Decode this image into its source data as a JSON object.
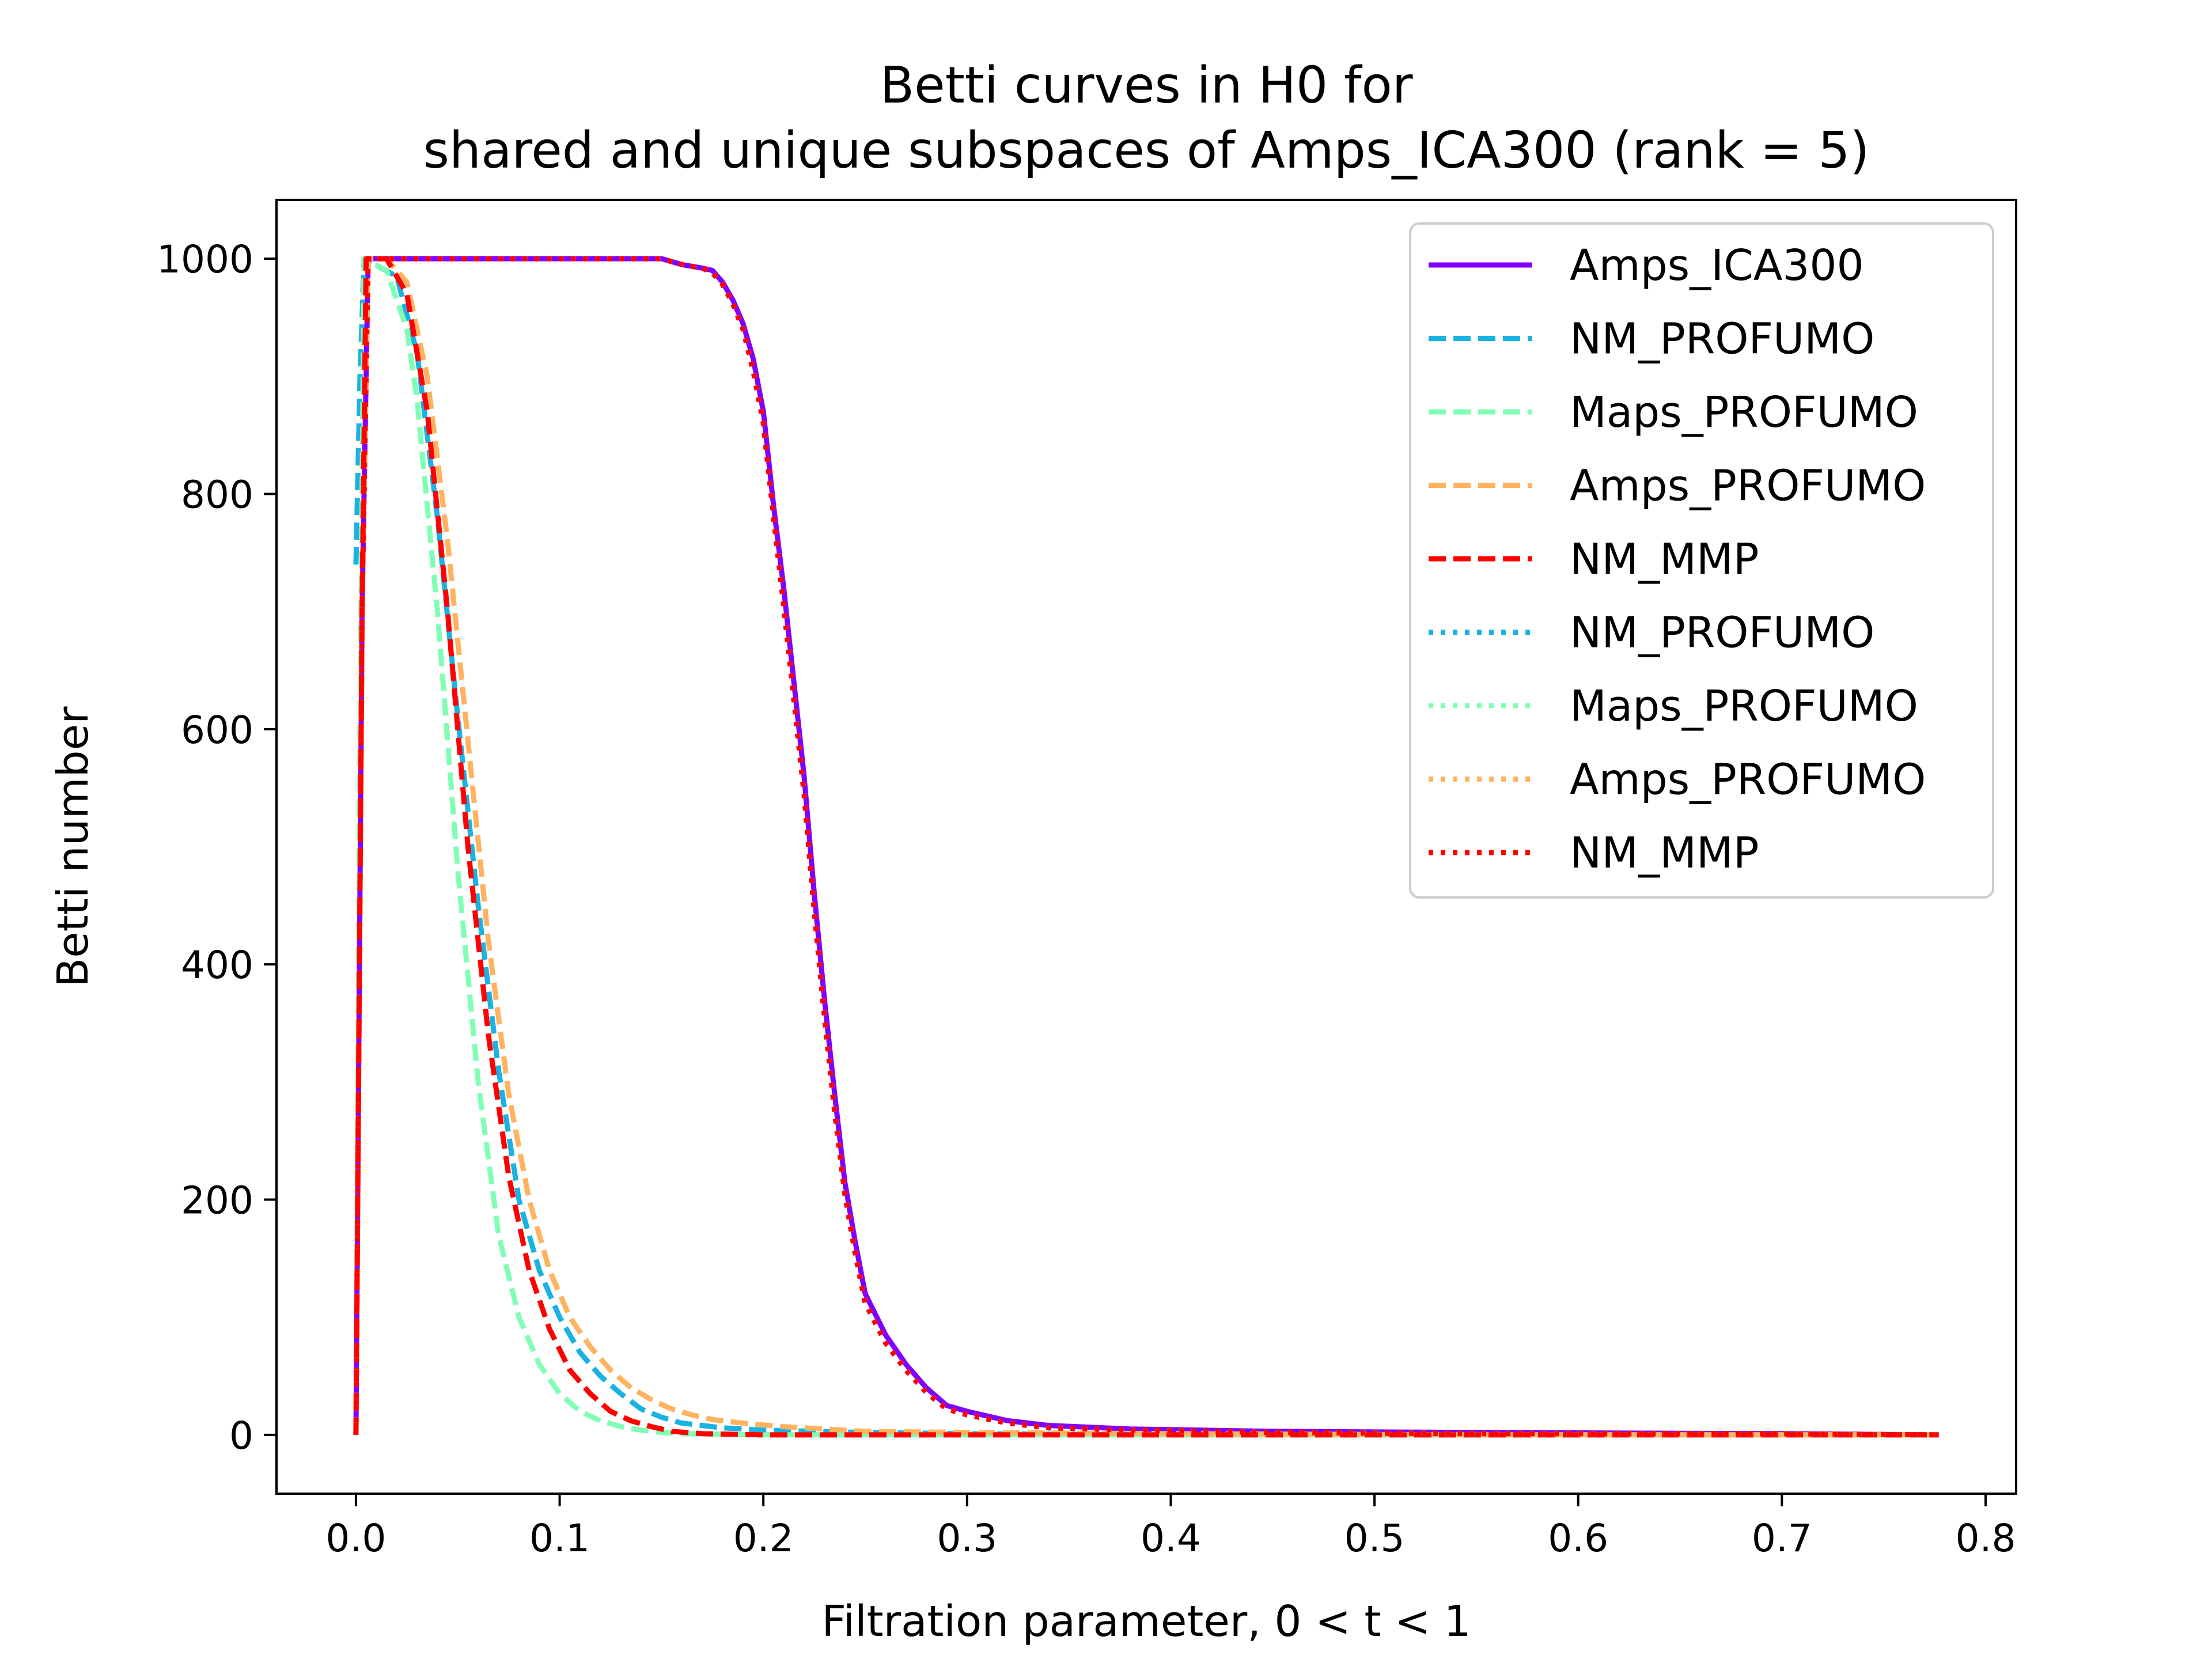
{
  "chart_data": {
    "type": "line",
    "title": [
      "Betti curves in H0 for",
      "shared and unique subspaces of Amps_ICA300 (rank = 5)"
    ],
    "xlabel": "Filtration parameter, 0 < t < 1",
    "ylabel": "Betti number",
    "xlim": [
      -0.039,
      0.815
    ],
    "ylim": [
      -50,
      1050
    ],
    "xticks": [
      0.0,
      0.1,
      0.2,
      0.3,
      0.4,
      0.5,
      0.6,
      0.7,
      0.8
    ],
    "xtick_labels": [
      "0.0",
      "0.1",
      "0.2",
      "0.3",
      "0.4",
      "0.5",
      "0.6",
      "0.7",
      "0.8"
    ],
    "yticks": [
      0,
      200,
      400,
      600,
      800,
      1000
    ],
    "ytick_labels": [
      "0",
      "200",
      "400",
      "600",
      "800",
      "1000"
    ],
    "grid": false,
    "legend_position": "top-right",
    "series": [
      {
        "name": "Amps_ICA300",
        "color": "#8000ff",
        "style": "solid",
        "x": [
          0.0,
          0.003,
          0.006,
          0.15,
          0.16,
          0.17,
          0.175,
          0.18,
          0.185,
          0.19,
          0.195,
          0.2,
          0.205,
          0.21,
          0.215,
          0.22,
          0.225,
          0.23,
          0.235,
          0.24,
          0.245,
          0.25,
          0.26,
          0.27,
          0.28,
          0.29,
          0.3,
          0.32,
          0.34,
          0.38,
          0.45,
          0.55,
          0.7,
          0.777
        ],
        "y": [
          0,
          700,
          1000,
          1000,
          995,
          992,
          990,
          980,
          965,
          945,
          915,
          870,
          790,
          720,
          640,
          560,
          460,
          370,
          290,
          215,
          165,
          120,
          85,
          60,
          40,
          25,
          20,
          12,
          8,
          5,
          3,
          2,
          1,
          0
        ]
      },
      {
        "name": "NM_PROFUMO",
        "color": "#1ab2e3",
        "style": "dashed",
        "x": [
          0.0,
          0.002,
          0.004,
          0.02,
          0.03,
          0.04,
          0.05,
          0.06,
          0.07,
          0.08,
          0.09,
          0.1,
          0.11,
          0.12,
          0.13,
          0.14,
          0.15,
          0.16,
          0.17,
          0.18,
          0.2,
          0.25,
          0.3,
          0.4,
          0.6,
          0.777
        ],
        "y": [
          740,
          900,
          1000,
          985,
          920,
          780,
          610,
          450,
          310,
          200,
          140,
          100,
          70,
          50,
          35,
          22,
          15,
          10,
          8,
          6,
          4,
          2,
          1,
          0,
          0,
          0
        ]
      },
      {
        "name": "Maps_PROFUMO",
        "color": "#80ffb4",
        "style": "dashed",
        "x": [
          0.0,
          0.002,
          0.004,
          0.015,
          0.025,
          0.03,
          0.04,
          0.05,
          0.06,
          0.07,
          0.08,
          0.09,
          0.1,
          0.11,
          0.12,
          0.13,
          0.14,
          0.15,
          0.16,
          0.2,
          0.3,
          0.5,
          0.777
        ],
        "y": [
          0,
          600,
          1000,
          990,
          940,
          880,
          700,
          480,
          300,
          170,
          100,
          60,
          35,
          20,
          12,
          7,
          4,
          2,
          1,
          0,
          0,
          0,
          0
        ]
      },
      {
        "name": "Amps_PROFUMO",
        "color": "#ffb360",
        "style": "dashed",
        "x": [
          0.0,
          0.003,
          0.006,
          0.015,
          0.025,
          0.035,
          0.045,
          0.055,
          0.065,
          0.075,
          0.085,
          0.095,
          0.105,
          0.115,
          0.125,
          0.135,
          0.145,
          0.155,
          0.165,
          0.175,
          0.19,
          0.21,
          0.23,
          0.25,
          0.3,
          0.4,
          0.55,
          0.777
        ],
        "y": [
          0,
          700,
          1000,
          1000,
          980,
          900,
          760,
          590,
          420,
          290,
          200,
          140,
          100,
          75,
          55,
          40,
          30,
          22,
          17,
          13,
          10,
          7,
          5,
          3,
          2,
          1,
          0,
          0
        ]
      },
      {
        "name": "NM_MMP",
        "color": "#ff0000",
        "style": "dashed",
        "x": [
          0.0,
          0.003,
          0.005,
          0.015,
          0.025,
          0.035,
          0.045,
          0.055,
          0.065,
          0.075,
          0.085,
          0.095,
          0.105,
          0.115,
          0.125,
          0.135,
          0.145,
          0.155,
          0.17,
          0.2,
          0.3,
          0.5,
          0.777
        ],
        "y": [
          0,
          700,
          1000,
          1000,
          970,
          870,
          700,
          500,
          340,
          220,
          140,
          90,
          55,
          35,
          20,
          12,
          7,
          3,
          1,
          0,
          0,
          0,
          0
        ]
      },
      {
        "name": "NM_PROFUMO",
        "color": "#1ab2e3",
        "style": "dotted",
        "x": [
          0.0,
          0.003,
          0.006,
          0.15,
          0.16,
          0.17,
          0.175,
          0.18,
          0.185,
          0.19,
          0.195,
          0.2,
          0.205,
          0.21,
          0.215,
          0.22,
          0.225,
          0.23,
          0.235,
          0.24,
          0.245,
          0.25,
          0.26,
          0.27,
          0.28,
          0.29,
          0.3,
          0.32,
          0.34,
          0.38,
          0.45,
          0.55,
          0.7,
          0.777
        ],
        "y": [
          0,
          700,
          1000,
          1000,
          995,
          992,
          988,
          978,
          962,
          940,
          905,
          860,
          780,
          705,
          625,
          545,
          445,
          355,
          275,
          205,
          155,
          112,
          78,
          55,
          36,
          22,
          17,
          10,
          6,
          4,
          2,
          1,
          1,
          0
        ]
      },
      {
        "name": "Maps_PROFUMO",
        "color": "#80ffb4",
        "style": "dotted",
        "x": [
          0.0,
          0.003,
          0.006,
          0.15,
          0.16,
          0.17,
          0.175,
          0.18,
          0.185,
          0.19,
          0.195,
          0.2,
          0.205,
          0.21,
          0.215,
          0.22,
          0.225,
          0.23,
          0.235,
          0.24,
          0.245,
          0.25,
          0.26,
          0.27,
          0.28,
          0.29,
          0.3,
          0.32,
          0.34,
          0.38,
          0.45,
          0.55,
          0.7,
          0.777
        ],
        "y": [
          0,
          700,
          1000,
          1000,
          995,
          992,
          988,
          978,
          962,
          940,
          905,
          860,
          780,
          705,
          625,
          545,
          445,
          355,
          275,
          205,
          155,
          112,
          78,
          55,
          36,
          22,
          17,
          10,
          6,
          4,
          2,
          1,
          1,
          0
        ]
      },
      {
        "name": "Amps_PROFUMO",
        "color": "#ffb360",
        "style": "dotted",
        "x": [
          0.0,
          0.003,
          0.006,
          0.15,
          0.16,
          0.17,
          0.175,
          0.18,
          0.185,
          0.19,
          0.195,
          0.2,
          0.205,
          0.21,
          0.215,
          0.22,
          0.225,
          0.23,
          0.235,
          0.24,
          0.245,
          0.25,
          0.26,
          0.27,
          0.28,
          0.29,
          0.3,
          0.32,
          0.34,
          0.38,
          0.45,
          0.55,
          0.7,
          0.777
        ],
        "y": [
          0,
          700,
          1000,
          1000,
          995,
          992,
          988,
          978,
          962,
          940,
          905,
          860,
          780,
          705,
          625,
          545,
          445,
          355,
          275,
          205,
          155,
          112,
          78,
          55,
          36,
          22,
          17,
          10,
          6,
          4,
          2,
          1,
          1,
          0
        ]
      },
      {
        "name": "NM_MMP",
        "color": "#ff0000",
        "style": "dotted",
        "x": [
          0.0,
          0.003,
          0.006,
          0.15,
          0.16,
          0.17,
          0.175,
          0.18,
          0.185,
          0.19,
          0.195,
          0.2,
          0.205,
          0.21,
          0.215,
          0.22,
          0.225,
          0.23,
          0.235,
          0.24,
          0.245,
          0.25,
          0.26,
          0.27,
          0.28,
          0.29,
          0.3,
          0.32,
          0.34,
          0.38,
          0.45,
          0.55,
          0.7,
          0.777
        ],
        "y": [
          0,
          700,
          1000,
          1000,
          995,
          992,
          988,
          978,
          962,
          940,
          905,
          860,
          780,
          705,
          625,
          545,
          445,
          355,
          275,
          205,
          155,
          112,
          78,
          55,
          36,
          22,
          17,
          10,
          6,
          4,
          2,
          1,
          1,
          0
        ]
      }
    ]
  }
}
